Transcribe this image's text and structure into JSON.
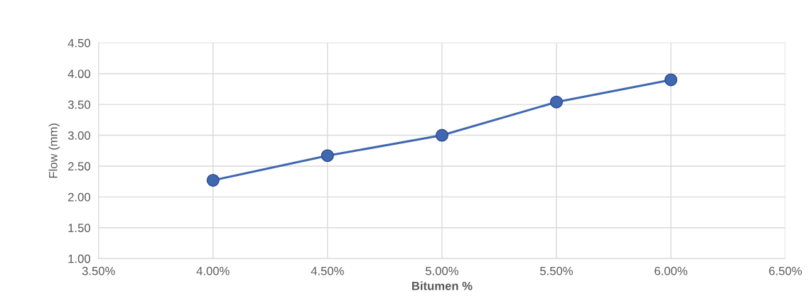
{
  "chart_data": {
    "type": "line",
    "xlabel": "Bitumen %",
    "ylabel": "Flow (mm)",
    "x": [
      4.0,
      4.5,
      5.0,
      5.5,
      6.0
    ],
    "series": [
      {
        "color": "#4068b0",
        "values": [
          2.27,
          2.67,
          3.0,
          3.54,
          3.9
        ]
      }
    ],
    "xlim": [
      3.5,
      6.5
    ],
    "ylim": [
      1.0,
      4.5
    ],
    "xticks": [
      {
        "value": 3.5,
        "label": "3.50%"
      },
      {
        "value": 4.0,
        "label": "4.00%"
      },
      {
        "value": 4.5,
        "label": "4.50%"
      },
      {
        "value": 5.0,
        "label": "5.00%"
      },
      {
        "value": 5.5,
        "label": "5.50%"
      },
      {
        "value": 6.0,
        "label": "6.00%"
      },
      {
        "value": 6.5,
        "label": "6.50%"
      }
    ],
    "yticks": [
      {
        "value": 1.0,
        "label": "1.00"
      },
      {
        "value": 1.5,
        "label": "1.50"
      },
      {
        "value": 2.0,
        "label": "2.00"
      },
      {
        "value": 2.5,
        "label": "2.50"
      },
      {
        "value": 3.0,
        "label": "3.00"
      },
      {
        "value": 3.5,
        "label": "3.50"
      },
      {
        "value": 4.0,
        "label": "4.00"
      },
      {
        "value": 4.5,
        "label": "4.50"
      }
    ],
    "grid": true,
    "marker": "circle",
    "line_style": "solid"
  }
}
